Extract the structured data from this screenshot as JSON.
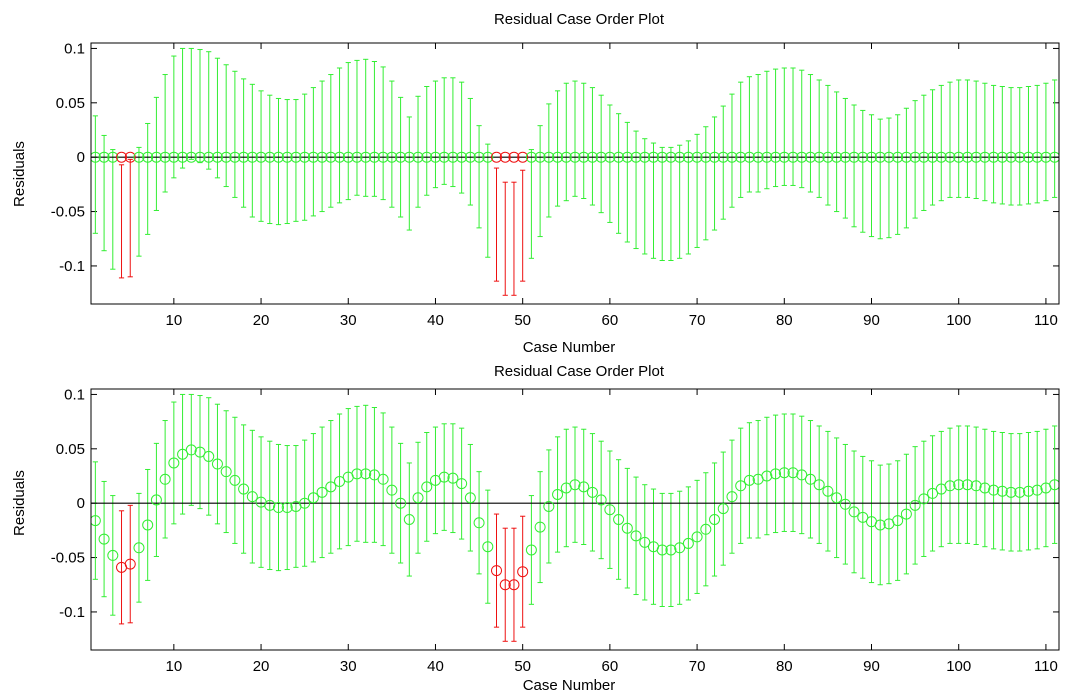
{
  "colors": {
    "inlier": "#33ee33",
    "outlier": "#ee1111",
    "zero_line": "#000000",
    "frame": "#000000",
    "background": "#ffffff"
  },
  "chart_data": [
    {
      "type": "errorbar",
      "title": "Residual Case Order Plot",
      "xlabel": "Case Number",
      "ylabel": "Residuals",
      "xlim": [
        0.5,
        111.5
      ],
      "ylim": [
        -0.135,
        0.105
      ],
      "xticks": [
        10,
        20,
        30,
        40,
        50,
        60,
        70,
        80,
        90,
        100,
        110
      ],
      "yticks": [
        -0.1,
        -0.05,
        0,
        0.05,
        0.1
      ],
      "ytick_labels": [
        "-0.1",
        "-0.05",
        "0",
        "0.05",
        "0.1"
      ],
      "grid": false,
      "residual_mode": "zero",
      "outlier_cases": [
        4,
        5,
        47,
        48,
        49,
        50
      ],
      "residuals": [],
      "note_intervals": "interval half-widths shared with second panel"
    },
    {
      "type": "errorbar",
      "title": "Residual Case Order Plot",
      "xlabel": "Case Number",
      "ylabel": "Residuals",
      "xlim": [
        0.5,
        111.5
      ],
      "ylim": [
        -0.135,
        0.105
      ],
      "xticks": [
        10,
        20,
        30,
        40,
        50,
        60,
        70,
        80,
        90,
        100,
        110
      ],
      "yticks": [
        -0.1,
        -0.05,
        0,
        0.05,
        0.1
      ],
      "ytick_labels": [
        "-0.1",
        "-0.05",
        "0",
        "0.05",
        "0.1"
      ],
      "grid": false,
      "outlier_cases": [
        4,
        5,
        47,
        48,
        49,
        50
      ],
      "residuals": [
        -0.016,
        -0.033,
        -0.048,
        -0.059,
        -0.056,
        -0.041,
        -0.02,
        0.003,
        0.022,
        0.037,
        0.045,
        0.049,
        0.047,
        0.043,
        0.036,
        0.029,
        0.021,
        0.013,
        0.006,
        0.001,
        -0.002,
        -0.004,
        -0.004,
        -0.003,
        0.0,
        0.005,
        0.01,
        0.015,
        0.02,
        0.024,
        0.027,
        0.027,
        0.026,
        0.022,
        0.012,
        0.0,
        -0.015,
        0.005,
        0.015,
        0.021,
        0.024,
        0.023,
        0.018,
        0.005,
        -0.018,
        -0.04,
        -0.062,
        -0.075,
        -0.075,
        -0.063,
        -0.043,
        -0.022,
        -0.003,
        0.008,
        0.014,
        0.017,
        0.015,
        0.01,
        0.003,
        -0.006,
        -0.015,
        -0.023,
        -0.03,
        -0.036,
        -0.04,
        -0.043,
        -0.043,
        -0.041,
        -0.037,
        -0.031,
        -0.024,
        -0.015,
        -0.005,
        0.006,
        0.016,
        0.021,
        0.022,
        0.025,
        0.027,
        0.028,
        0.028,
        0.026,
        0.022,
        0.017,
        0.011,
        0.005,
        -0.001,
        -0.008,
        -0.013,
        -0.017,
        -0.02,
        -0.019,
        -0.016,
        -0.01,
        -0.002,
        0.004,
        0.009,
        0.013,
        0.016,
        0.017,
        0.017,
        0.016,
        0.014,
        0.012,
        0.011,
        0.01,
        0.01,
        0.011,
        0.012,
        0.014,
        0.017
      ],
      "half_widths": [
        0.054,
        0.053,
        0.055,
        0.052,
        0.054,
        0.05,
        0.051,
        0.052,
        0.054,
        0.056,
        0.055,
        0.051,
        0.052,
        0.054,
        0.055,
        0.056,
        0.058,
        0.059,
        0.061,
        0.06,
        0.059,
        0.058,
        0.057,
        0.056,
        0.058,
        0.059,
        0.06,
        0.061,
        0.062,
        0.063,
        0.062,
        0.063,
        0.062,
        0.061,
        0.058,
        0.055,
        0.052,
        0.051,
        0.05,
        0.049,
        0.049,
        0.05,
        0.051,
        0.049,
        0.047,
        0.052,
        0.052,
        0.052,
        0.052,
        0.051,
        0.05,
        0.051,
        0.052,
        0.053,
        0.054,
        0.053,
        0.053,
        0.054,
        0.054,
        0.054,
        0.055,
        0.055,
        0.054,
        0.053,
        0.053,
        0.052,
        0.052,
        0.052,
        0.052,
        0.052,
        0.052,
        0.052,
        0.052,
        0.052,
        0.053,
        0.053,
        0.054,
        0.054,
        0.054,
        0.054,
        0.054,
        0.054,
        0.054,
        0.054,
        0.055,
        0.055,
        0.055,
        0.056,
        0.056,
        0.056,
        0.055,
        0.055,
        0.055,
        0.055,
        0.054,
        0.053,
        0.053,
        0.053,
        0.053,
        0.054,
        0.054,
        0.054,
        0.054,
        0.054,
        0.054,
        0.054,
        0.054,
        0.054,
        0.054,
        0.054,
        0.054
      ]
    }
  ]
}
